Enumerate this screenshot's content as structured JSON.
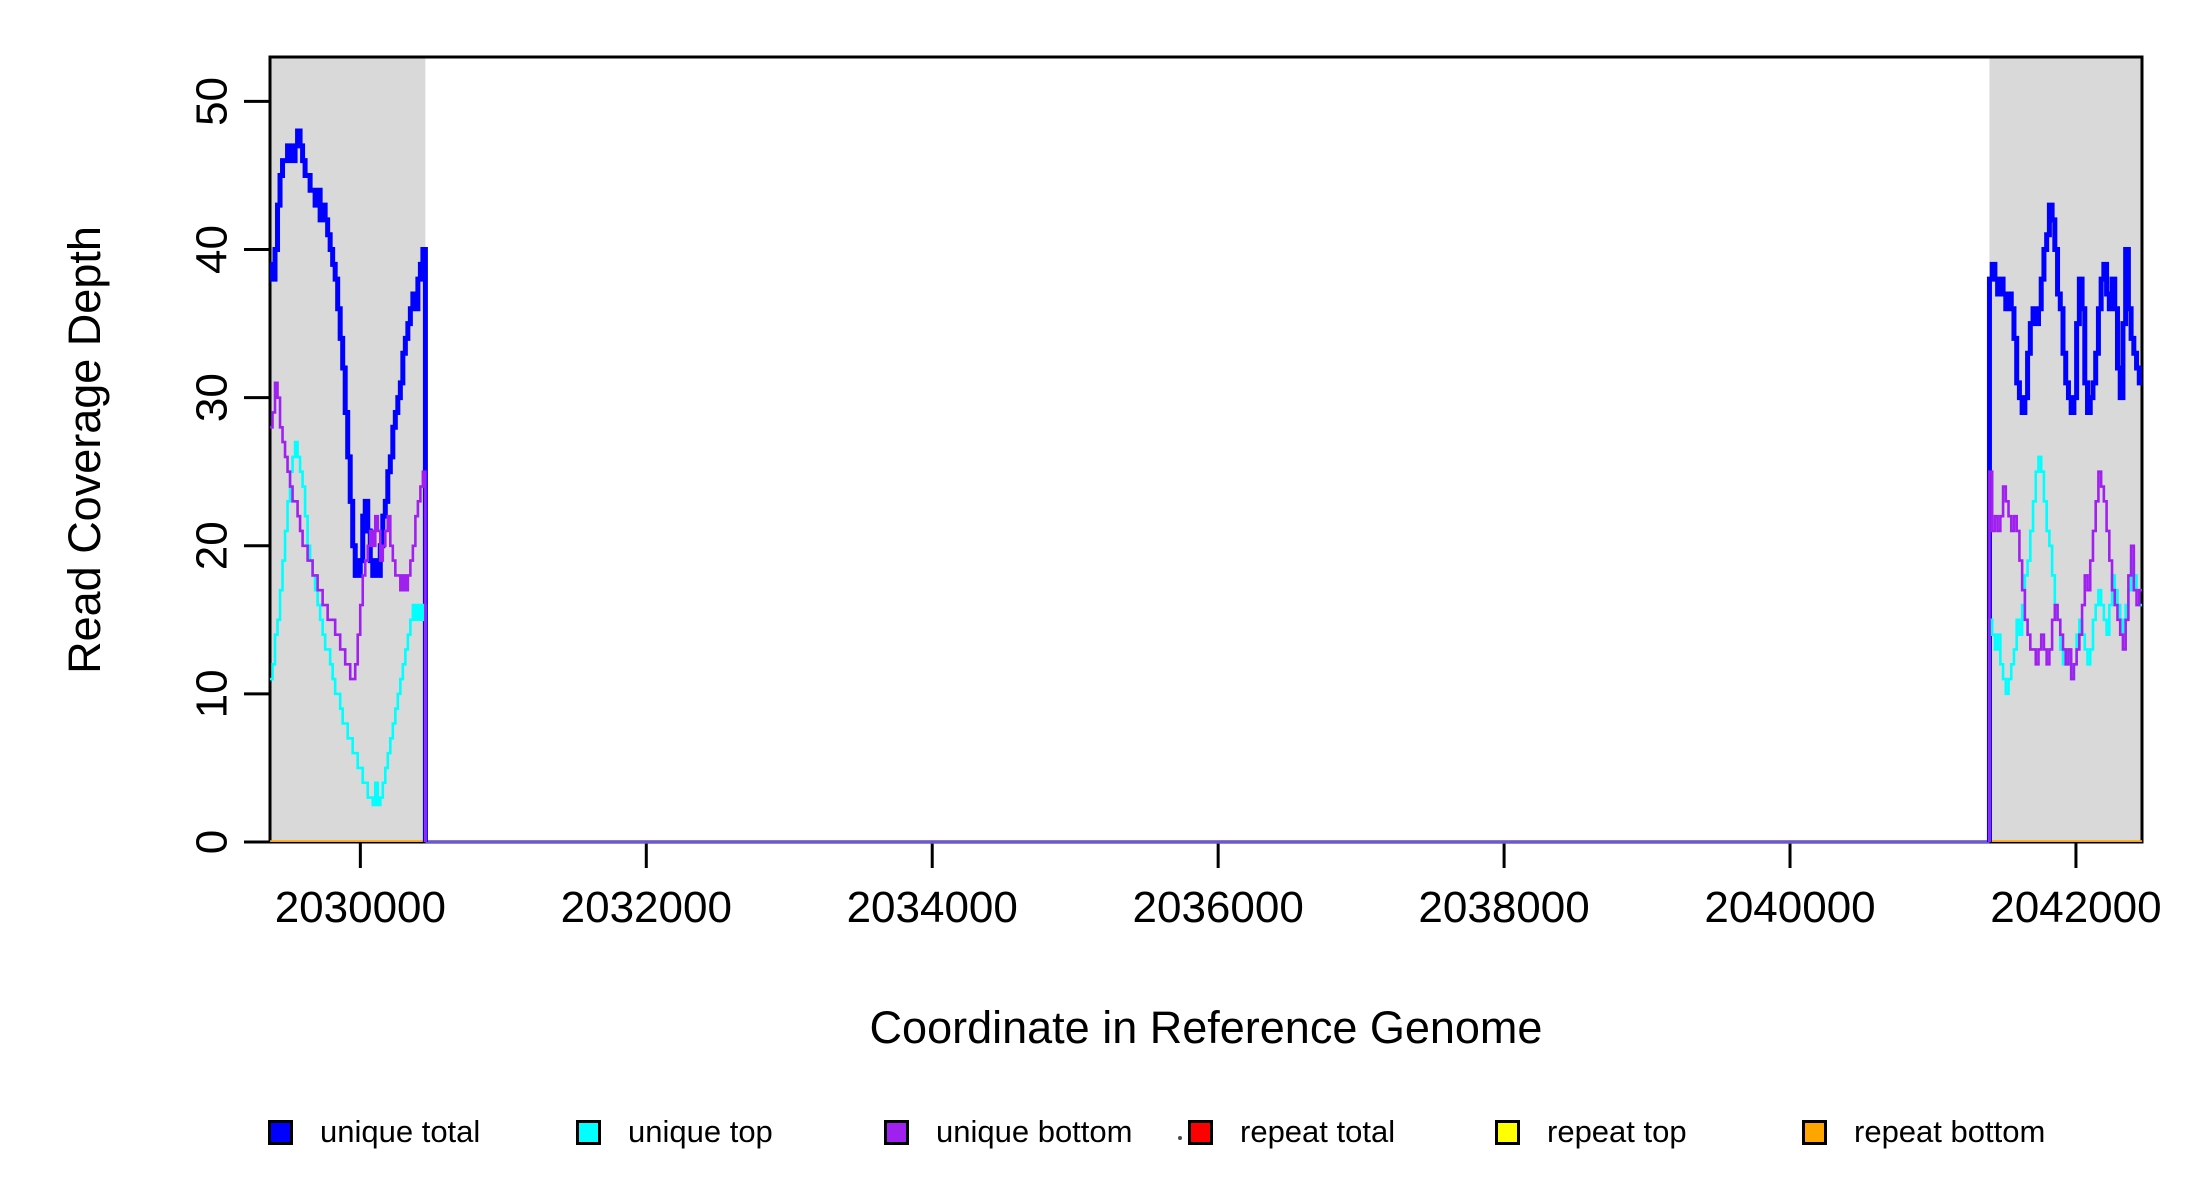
{
  "chart_data": {
    "type": "line",
    "title": "",
    "xlabel": "Coordinate in Reference Genome",
    "ylabel": "Read Coverage Depth",
    "xlim": [
      2029368,
      2042462
    ],
    "ylim": [
      0,
      53
    ],
    "x_ticks": [
      2030000,
      2032000,
      2034000,
      2036000,
      2038000,
      2040000,
      2042000
    ],
    "y_ticks": [
      0,
      10,
      20,
      30,
      40,
      50
    ],
    "grid": false,
    "legend_position": "bottom",
    "highlight_regions": [
      {
        "name": "left-coverage-region",
        "x0": 2029368,
        "x1": 2030455,
        "color": "#d9d9d9"
      },
      {
        "name": "right-coverage-region",
        "x0": 2041395,
        "x1": 2042462,
        "color": "#d9d9d9"
      }
    ],
    "zero_line": {
      "color": "#6a5acd",
      "width": 3.5,
      "x0": 2030455,
      "x1": 2041395,
      "value": 0
    },
    "series": [
      {
        "name": "repeat total",
        "color": "#ff0000",
        "width": 3,
        "type": "flat",
        "value": 0
      },
      {
        "name": "repeat top",
        "color": "#ffff00",
        "width": 3,
        "type": "flat",
        "value": 0
      },
      {
        "name": "repeat bottom",
        "color": "#ffa500",
        "width": 3.5,
        "type": "flat",
        "value": 0
      },
      {
        "name": "unique total",
        "color": "#0000ff",
        "width": 5,
        "type": "step",
        "left": {
          "x0": 2029368,
          "x1": 2030455,
          "values": [
            39,
            38,
            40,
            43,
            45,
            46,
            46,
            47,
            46,
            46,
            47,
            48,
            47,
            46,
            45,
            45,
            44,
            44,
            43,
            44,
            42,
            43,
            42,
            41,
            40,
            39,
            38,
            36,
            34,
            32,
            29,
            26,
            23,
            20,
            18,
            18,
            19,
            22,
            23,
            21,
            19,
            18,
            19,
            18,
            20,
            22,
            23,
            25,
            26,
            28,
            29,
            30,
            31,
            33,
            34,
            35,
            36,
            37,
            36,
            38,
            39,
            40
          ]
        },
        "right": {
          "x0": 2041395,
          "x1": 2042462,
          "values": [
            38,
            39,
            38,
            37,
            38,
            37,
            36,
            37,
            36,
            34,
            31,
            30,
            29,
            30,
            33,
            35,
            36,
            35,
            36,
            38,
            40,
            41,
            43,
            42,
            40,
            37,
            36,
            33,
            31,
            30,
            29,
            30,
            35,
            38,
            36,
            31,
            29,
            30,
            31,
            33,
            36,
            38,
            39,
            37,
            36,
            38,
            36,
            32,
            30,
            35,
            40,
            36,
            34,
            33,
            32,
            31
          ]
        }
      },
      {
        "name": "unique top",
        "color": "#00ffff",
        "width": 2.6,
        "type": "step",
        "left": {
          "x0": 2029368,
          "x1": 2030455,
          "values": [
            11,
            12,
            14,
            15,
            17,
            19,
            21,
            23,
            25,
            26,
            27,
            26,
            25,
            24,
            22,
            20,
            19,
            18,
            17,
            16,
            15,
            14,
            13,
            13,
            12,
            11,
            10,
            10,
            9,
            8,
            8,
            7,
            7,
            6,
            6,
            5,
            5,
            4,
            4,
            3,
            3,
            2.5,
            4,
            2.5,
            3,
            4,
            5,
            6,
            7,
            8,
            9,
            10,
            11,
            12,
            13,
            14,
            15,
            16,
            15,
            16,
            15,
            16
          ]
        },
        "right": {
          "x0": 2041395,
          "x1": 2042462,
          "values": [
            15,
            14,
            13,
            14,
            12,
            11,
            10,
            11,
            12,
            13,
            15,
            14,
            16,
            18,
            19,
            21,
            23,
            25,
            26,
            25,
            23,
            21,
            20,
            18,
            16,
            15,
            13,
            12,
            13,
            12,
            11,
            12,
            14,
            15,
            14,
            13,
            12,
            13,
            15,
            16,
            17,
            16,
            15,
            14,
            16,
            18,
            17,
            16,
            15,
            14,
            16,
            17,
            19,
            18,
            17,
            16
          ]
        }
      },
      {
        "name": "unique bottom",
        "color": "#a020f0",
        "width": 2.6,
        "type": "step",
        "left": {
          "x0": 2029368,
          "x1": 2030455,
          "values": [
            28,
            29,
            31,
            30,
            28,
            27,
            26,
            25,
            24,
            23,
            23,
            22,
            21,
            20,
            20,
            19,
            19,
            18,
            18,
            17,
            17,
            16,
            16,
            15,
            15,
            15,
            14,
            14,
            13,
            13,
            12,
            12,
            11,
            11,
            12,
            14,
            16,
            18,
            19,
            20,
            21,
            20,
            22,
            21,
            19,
            20,
            21,
            22,
            20,
            19,
            18,
            18,
            17,
            18,
            17,
            18,
            19,
            20,
            22,
            23,
            24,
            25
          ]
        },
        "right": {
          "x0": 2041395,
          "x1": 2042462,
          "values": [
            25,
            21,
            22,
            21,
            22,
            24,
            23,
            22,
            21,
            22,
            21,
            19,
            17,
            15,
            14,
            13,
            13,
            12,
            13,
            14,
            13,
            12,
            13,
            15,
            16,
            15,
            14,
            13,
            12,
            13,
            11,
            12,
            13,
            14,
            16,
            18,
            17,
            19,
            21,
            23,
            25,
            24,
            23,
            21,
            19,
            17,
            16,
            15,
            14,
            13,
            15,
            18,
            20,
            17,
            16,
            17
          ]
        }
      }
    ],
    "legend": {
      "entries": [
        {
          "label": "unique total",
          "color": "#0000ff"
        },
        {
          "label": "unique top",
          "color": "#00ffff"
        },
        {
          "label": "unique bottom",
          "color": "#a020f0"
        },
        {
          "label": "repeat total",
          "color": "#ff0000"
        },
        {
          "label": "repeat top",
          "color": "#ffff00"
        },
        {
          "label": "repeat bottom",
          "color": "#ffa500"
        }
      ]
    }
  }
}
